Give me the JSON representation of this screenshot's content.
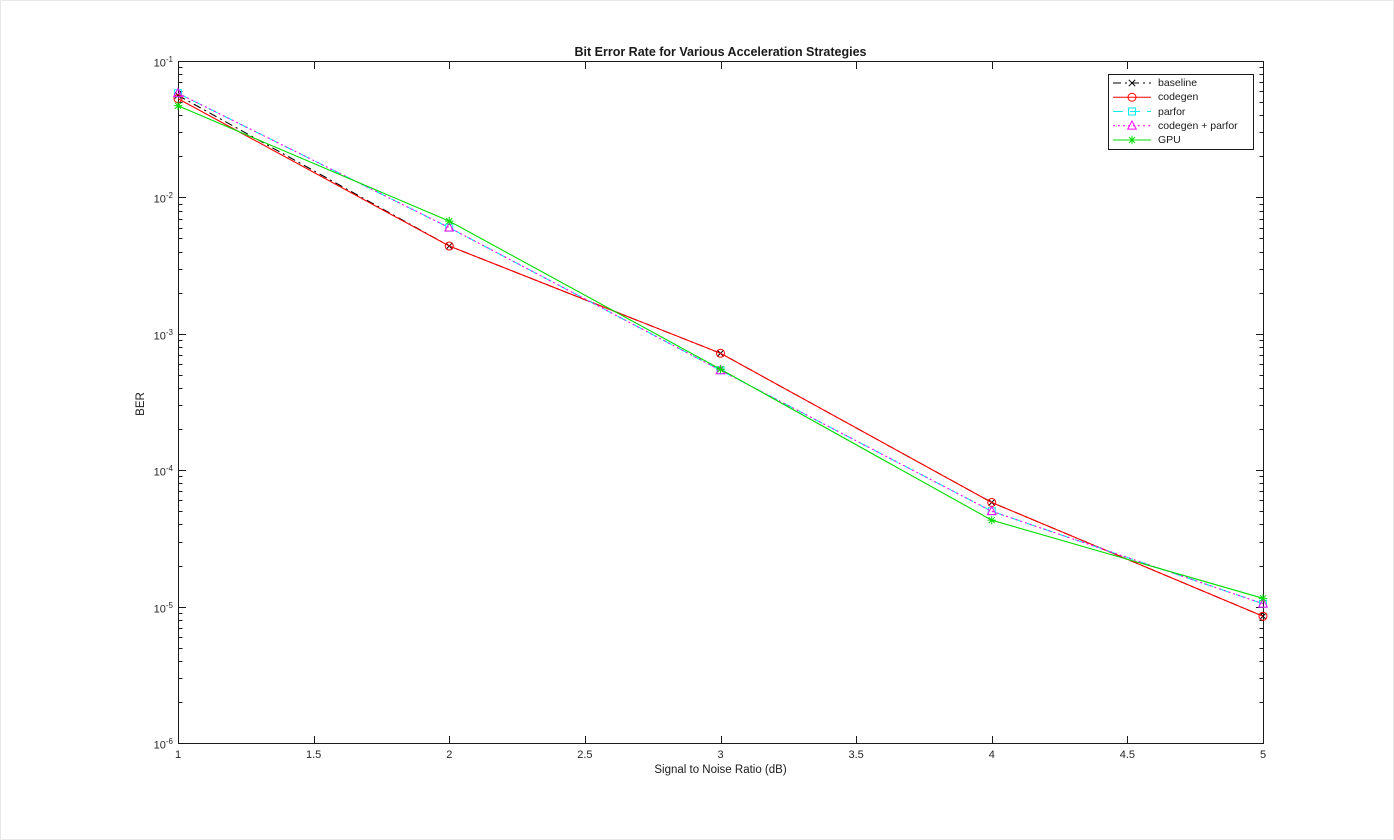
{
  "figure": {
    "background": "#ffffff",
    "axis_color": "#1a1a1a",
    "text_color": "#262626"
  },
  "chart_data": {
    "type": "line",
    "title": "Bit Error Rate for Various Acceleration Strategies",
    "xlabel": "Signal to Noise Ratio (dB)",
    "ylabel": "BER",
    "x": [
      1,
      2,
      3,
      4,
      5
    ],
    "xlim": [
      1,
      5
    ],
    "xticks": [
      1,
      1.5,
      2,
      2.5,
      3,
      3.5,
      4,
      4.5,
      5
    ],
    "yscale": "log",
    "ylim": [
      1e-06,
      0.1
    ],
    "ytick_exponents": [
      -1,
      -2,
      -3,
      -4,
      -5,
      -6
    ],
    "grid": false,
    "legend_position": "northeast",
    "series": [
      {
        "name": "baseline",
        "color": "#000000",
        "line": "dashdot",
        "marker": "x",
        "values": [
          0.056,
          0.0044,
          0.00072,
          5.8e-05,
          8.5e-06
        ]
      },
      {
        "name": "codegen",
        "color": "#ff0000",
        "line": "solid",
        "marker": "circle",
        "values": [
          0.053,
          0.0044,
          0.00072,
          5.8e-05,
          8.5e-06
        ]
      },
      {
        "name": "parfor",
        "color": "#00eeee",
        "line": "dashed",
        "marker": "square",
        "values": [
          0.058,
          0.006,
          0.00054,
          5e-05,
          1.05e-05
        ]
      },
      {
        "name": "codegen + parfor",
        "color": "#ff00ff",
        "line": "dotted",
        "marker": "triangle",
        "values": [
          0.058,
          0.006,
          0.00054,
          5e-05,
          1.05e-05
        ]
      },
      {
        "name": "GPU",
        "color": "#00dd00",
        "line": "solid",
        "marker": "asterisk",
        "values": [
          0.047,
          0.0067,
          0.00055,
          4.3e-05,
          1.15e-05
        ]
      }
    ]
  }
}
